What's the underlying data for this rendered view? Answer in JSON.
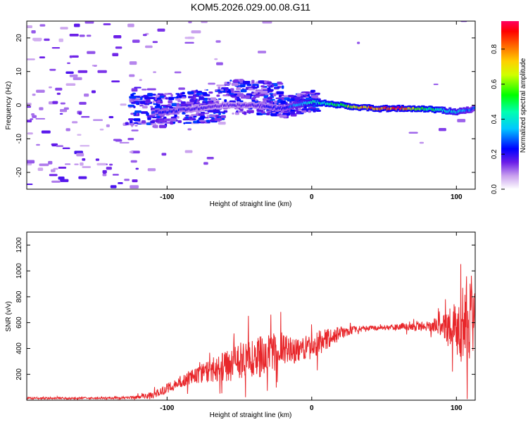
{
  "title": "KOM5.2026.029.00.08.G11",
  "colorbar": {
    "label": "Normalized spectral amplitude",
    "ticks": [
      "0.0",
      "0.2",
      "0.4",
      "0.6",
      "0.8"
    ],
    "tick_values": [
      0.0,
      0.2,
      0.4,
      0.6,
      0.8
    ],
    "range": [
      0,
      0.96
    ]
  },
  "chart_data": [
    {
      "type": "heatmap",
      "title": "KOM5.2026.029.00.08.G11",
      "xlabel": "Height of straight line (km)",
      "ylabel": "Frequency (Hz)",
      "xlim": [
        -197,
        113
      ],
      "ylim": [
        -25,
        25
      ],
      "xticks": [
        -100,
        0,
        100
      ],
      "xtick_labels": [
        "-100",
        "0",
        "100"
      ],
      "yticks": [
        -20,
        -10,
        0,
        10,
        20
      ],
      "ytick_labels": [
        "-20",
        "-10",
        "0",
        "10",
        "20"
      ],
      "colormap": "rainbow (white-violet-blue-cyan-green-yellow-orange-red-magenta)",
      "ridge": {
        "description": "narrow high-amplitude band near 0 Hz",
        "points": [
          {
            "x": -100,
            "y": -2,
            "amp": 0.25
          },
          {
            "x": -80,
            "y": -1,
            "amp": 0.2
          },
          {
            "x": -60,
            "y": 0,
            "amp": 0.18
          },
          {
            "x": -40,
            "y": 0,
            "amp": 0.2
          },
          {
            "x": -20,
            "y": -1,
            "amp": 0.25
          },
          {
            "x": 0,
            "y": 1,
            "amp": 0.45
          },
          {
            "x": 20,
            "y": 0,
            "amp": 0.55
          },
          {
            "x": 30,
            "y": -0.5,
            "amp": 0.75
          },
          {
            "x": 45,
            "y": -1,
            "amp": 0.9
          },
          {
            "x": 60,
            "y": -1,
            "amp": 0.95
          },
          {
            "x": 75,
            "y": -1,
            "amp": 0.6
          },
          {
            "x": 90,
            "y": -1.5,
            "amp": 0.45
          },
          {
            "x": 100,
            "y": -2,
            "amp": 0.4
          },
          {
            "x": 113,
            "y": -1,
            "amp": 0.3
          }
        ]
      }
    },
    {
      "type": "line",
      "xlabel": "Height of straight line (km)",
      "ylabel": "SNR (v/v)",
      "xlim": [
        -197,
        113
      ],
      "ylim": [
        0,
        1300
      ],
      "xticks": [
        -100,
        0,
        100
      ],
      "xtick_labels": [
        "-100",
        "0",
        "100"
      ],
      "yticks": [
        200,
        400,
        600,
        800,
        1000,
        1200
      ],
      "ytick_labels": [
        "200",
        "400",
        "600",
        "800",
        "1000",
        "1200"
      ],
      "series": [
        {
          "name": "SNR",
          "color": "#e8262a",
          "envelope": {
            "x": [
              -197,
              -150,
              -125,
              -110,
              -100,
              -90,
              -80,
              -70,
              -60,
              -50,
              -40,
              -30,
              -20,
              -10,
              0,
              10,
              20,
              30,
              40,
              50,
              60,
              70,
              80,
              90,
              100,
              105,
              110,
              113
            ],
            "mean": [
              15,
              15,
              20,
              40,
              90,
              150,
              190,
              230,
              260,
              300,
              330,
              360,
              400,
              380,
              420,
              470,
              520,
              550,
              560,
              560,
              570,
              565,
              570,
              580,
              560,
              570,
              600,
              620
            ],
            "amplitude": [
              8,
              8,
              10,
              25,
              40,
              50,
              60,
              90,
              120,
              140,
              160,
              170,
              130,
              90,
              100,
              90,
              50,
              25,
              20,
              20,
              25,
              30,
              40,
              80,
              200,
              350,
              450,
              250
            ]
          }
        }
      ]
    }
  ]
}
